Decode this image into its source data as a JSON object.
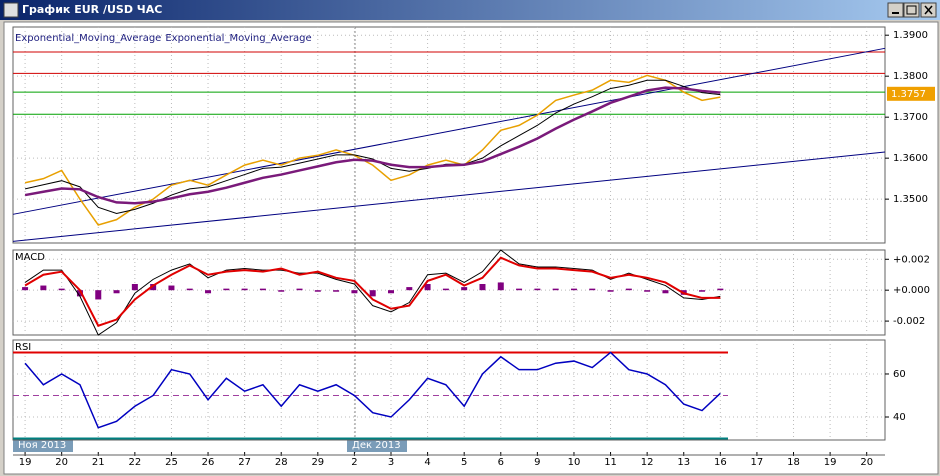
{
  "window": {
    "title": "График EUR /USD ЧАС"
  },
  "chart_data": [
    {
      "type": "line",
      "legend_text": [
        "Exponential_Moving_Average",
        "Exponential_Moving_Average"
      ],
      "x": [
        0,
        0.5,
        1,
        1.5,
        2,
        2.5,
        3,
        3.5,
        4,
        4.5,
        5,
        5.5,
        6,
        6.5,
        7,
        7.5,
        8,
        8.5,
        9,
        9.5,
        10,
        10.5,
        11,
        11.5,
        12,
        12.5,
        13,
        13.5,
        14,
        14.5,
        15,
        15.5,
        16,
        16.5,
        17,
        17.5,
        18,
        18.5,
        19
      ],
      "xlim": [
        -0.33,
        23.5
      ],
      "ylim": [
        1.3393,
        1.392
      ],
      "yticks": [
        {
          "value": 1.39,
          "label": "1.3900"
        },
        {
          "value": 1.38,
          "label": "1.3800"
        },
        {
          "value": 1.37,
          "label": "1.3700"
        },
        {
          "value": 1.36,
          "label": "1.3600"
        },
        {
          "value": 1.35,
          "label": "1.3500"
        }
      ],
      "grid": true,
      "series": [
        {
          "color": "#e8a000",
          "width": 1.5,
          "values": [
            1.354,
            1.355,
            1.357,
            1.35,
            1.3437,
            1.345,
            1.348,
            1.35,
            1.3534,
            1.3546,
            1.3534,
            1.3559,
            1.3583,
            1.3595,
            1.3583,
            1.36,
            1.3607,
            1.362,
            1.3607,
            1.3583,
            1.3546,
            1.3559,
            1.3583,
            1.3595,
            1.3583,
            1.362,
            1.3668,
            1.368,
            1.3705,
            1.3741,
            1.3754,
            1.3766,
            1.379,
            1.3785,
            1.3802,
            1.379,
            1.3761,
            1.3741,
            1.3749
          ]
        },
        {
          "color": "#000000",
          "width": 1,
          "values": [
            1.3525,
            1.3535,
            1.3545,
            1.353,
            1.348,
            1.3465,
            1.3475,
            1.349,
            1.351,
            1.3525,
            1.353,
            1.3545,
            1.356,
            1.3575,
            1.3578,
            1.3588,
            1.3598,
            1.3608,
            1.3608,
            1.3598,
            1.3575,
            1.3568,
            1.3575,
            1.3585,
            1.3585,
            1.36,
            1.363,
            1.3655,
            1.368,
            1.371,
            1.3732,
            1.375,
            1.377,
            1.3778,
            1.379,
            1.379,
            1.3775,
            1.376,
            1.3755
          ]
        },
        {
          "color": "#7a1a7a",
          "width": 2.5,
          "values": [
            1.351,
            1.3518,
            1.3526,
            1.3524,
            1.3505,
            1.3492,
            1.349,
            1.3494,
            1.3502,
            1.3512,
            1.3518,
            1.3528,
            1.354,
            1.3552,
            1.356,
            1.357,
            1.358,
            1.359,
            1.3596,
            1.3594,
            1.3584,
            1.3578,
            1.3578,
            1.3582,
            1.3584,
            1.3592,
            1.361,
            1.3628,
            1.3648,
            1.3672,
            1.3694,
            1.3714,
            1.3735,
            1.375,
            1.3765,
            1.3772,
            1.377,
            1.3764,
            1.376
          ]
        }
      ],
      "hlines": [
        {
          "value": 1.3859,
          "color": "#d00000"
        },
        {
          "value": 1.3807,
          "color": "#d00000"
        },
        {
          "value": 1.3761,
          "color": "#00a000"
        },
        {
          "value": 1.3707,
          "color": "#00a000"
        }
      ],
      "trendlines": [
        {
          "color": "#000080",
          "x": [
            -0.33,
            23.5
          ],
          "values": [
            1.3463,
            1.3868
          ]
        },
        {
          "color": "#000080",
          "x": [
            -0.33,
            23.5
          ],
          "values": [
            1.3397,
            1.3615
          ]
        }
      ],
      "last_value": 1.3757
    },
    {
      "type": "macd",
      "title": "MACD",
      "x": [
        0,
        0.5,
        1,
        1.5,
        2,
        2.5,
        3,
        3.5,
        4,
        4.5,
        5,
        5.5,
        6,
        6.5,
        7,
        7.5,
        8,
        8.5,
        9,
        9.5,
        10,
        10.5,
        11,
        11.5,
        12,
        12.5,
        13,
        13.5,
        14,
        14.5,
        15,
        15.5,
        16,
        16.5,
        17,
        17.5,
        18,
        18.5,
        19
      ],
      "xlim": [
        -0.33,
        23.5
      ],
      "ylim": [
        -0.0029,
        0.0026
      ],
      "yticks": [
        {
          "value": 0.002,
          "label": "+0.002"
        },
        {
          "value": 0,
          "label": "+0.000"
        },
        {
          "value": -0.002,
          "label": "-0.002"
        }
      ],
      "grid": true,
      "histogram": {
        "color": "#800080",
        "values": [
          0.0002,
          0.0003,
          0.0001,
          -0.0004,
          -0.0006,
          -0.0002,
          0.0004,
          0.0004,
          0.0003,
          0.0001,
          -0.0002,
          0.0001,
          0.0001,
          0.0001,
          -0.0001,
          0.0001,
          -0.0001,
          -0.0001,
          -0.0002,
          -0.0004,
          -0.0002,
          0.0002,
          0.0004,
          0.0001,
          0.0002,
          0.0004,
          0.0005,
          0.0001,
          0.0001,
          0.0001,
          0.0001,
          0.0001,
          -0.0001,
          0.0001,
          -0.0001,
          -0.0002,
          -0.0003,
          -0.0001,
          0.0001
        ]
      },
      "series": [
        {
          "color": "#000000",
          "width": 1,
          "values": [
            0.0005,
            0.0013,
            0.0013,
            -0.0004,
            -0.0029,
            -0.0021,
            -0.0002,
            0.0007,
            0.0013,
            0.0017,
            0.0008,
            0.0013,
            0.0014,
            0.0013,
            0.0013,
            0.0011,
            0.0011,
            0.0007,
            0.0004,
            -0.001,
            -0.0014,
            -0.0008,
            0.001,
            0.0011,
            0.0005,
            0.0012,
            0.0026,
            0.0017,
            0.0015,
            0.0015,
            0.0014,
            0.0013,
            0.0007,
            0.0011,
            0.0007,
            0.0003,
            -0.0005,
            -0.0006,
            -0.0004
          ]
        },
        {
          "color": "#e00000",
          "width": 2,
          "values": [
            0.0003,
            0.001,
            0.0012,
            0,
            -0.0023,
            -0.0019,
            -0.0006,
            0.0003,
            0.001,
            0.0016,
            0.001,
            0.0012,
            0.0013,
            0.0012,
            0.0014,
            0.001,
            0.0012,
            0.0008,
            0.0006,
            -0.0006,
            -0.0012,
            -0.001,
            0.0006,
            0.001,
            0.0003,
            0.0008,
            0.0021,
            0.0016,
            0.0014,
            0.0014,
            0.0013,
            0.0012,
            0.0008,
            0.001,
            0.0008,
            0.0005,
            -0.0002,
            -0.0005,
            -0.0005
          ]
        }
      ]
    },
    {
      "type": "line",
      "title": "RSI",
      "x": [
        0,
        0.5,
        1,
        1.5,
        2,
        2.5,
        3,
        3.5,
        4,
        4.5,
        5,
        5.5,
        6,
        6.5,
        7,
        7.5,
        8,
        8.5,
        9,
        9.5,
        10,
        10.5,
        11,
        11.5,
        12,
        12.5,
        13,
        13.5,
        14,
        14.5,
        15,
        15.5,
        16,
        16.5,
        17,
        17.5,
        18,
        18.5,
        19
      ],
      "xlim": [
        -0.33,
        23.5
      ],
      "ylim": [
        29.3,
        75.8
      ],
      "yticks": [
        60,
        40
      ],
      "xticks": [
        {
          "value": 0,
          "label": "19"
        },
        {
          "value": 1,
          "label": "20"
        },
        {
          "value": 2,
          "label": "21"
        },
        {
          "value": 3,
          "label": "22"
        },
        {
          "value": 4,
          "label": "25"
        },
        {
          "value": 5,
          "label": "26"
        },
        {
          "value": 6,
          "label": "27"
        },
        {
          "value": 7,
          "label": "28"
        },
        {
          "value": 8,
          "label": "29"
        },
        {
          "value": 9,
          "label": "2"
        },
        {
          "value": 10,
          "label": "3"
        },
        {
          "value": 11,
          "label": "4"
        },
        {
          "value": 12,
          "label": "5"
        },
        {
          "value": 13,
          "label": "6"
        },
        {
          "value": 14,
          "label": "9"
        },
        {
          "value": 15,
          "label": "10"
        },
        {
          "value": 16,
          "label": "11"
        },
        {
          "value": 17,
          "label": "12"
        },
        {
          "value": 18,
          "label": "13"
        },
        {
          "value": 19,
          "label": "16"
        },
        {
          "value": 20,
          "label": "17"
        },
        {
          "value": 21,
          "label": "18"
        },
        {
          "value": 22,
          "label": "19"
        },
        {
          "value": 23,
          "label": "20"
        }
      ],
      "months": [
        "Ноя 2013",
        "Дек 2013"
      ],
      "grid": true,
      "series": [
        {
          "color": "#0000c0",
          "width": 1.5,
          "values": [
            65,
            55,
            60,
            55,
            35,
            38,
            45,
            50,
            62,
            60,
            48,
            58,
            52,
            55,
            45,
            55,
            52,
            55,
            50,
            42,
            40,
            48,
            58,
            55,
            45,
            60,
            68,
            62,
            62,
            65,
            66,
            63,
            70,
            62,
            60,
            55,
            46,
            43,
            51
          ]
        }
      ],
      "hlines": [
        {
          "value": 70,
          "color": "#e00000"
        },
        {
          "value": 30,
          "color": "#008080"
        },
        {
          "value": 50,
          "color": "#a040a0",
          "dash": true
        }
      ]
    }
  ]
}
